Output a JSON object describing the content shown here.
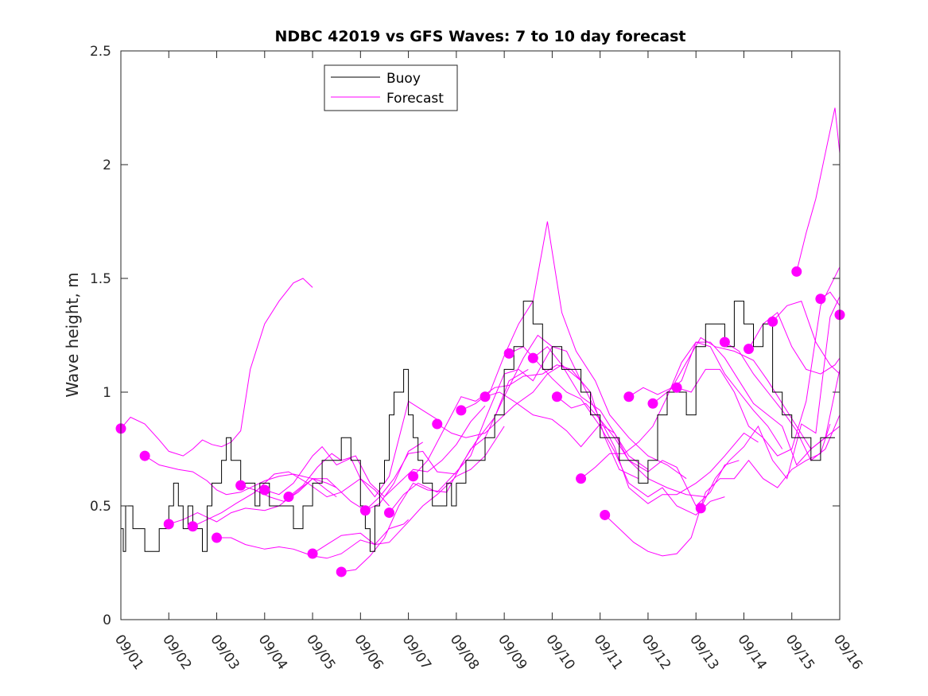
{
  "chart_data": {
    "type": "line",
    "title": "NDBC 42019 vs GFS Waves: 7 to 10 day forecast",
    "xlabel": "",
    "ylabel": "Wave height, m",
    "xlim_days": [
      0,
      15
    ],
    "ylim": [
      0,
      2.5
    ],
    "x_tick_labels": [
      "09/01",
      "09/02",
      "09/03",
      "09/04",
      "09/05",
      "09/06",
      "09/07",
      "09/08",
      "09/09",
      "09/10",
      "09/11",
      "09/12",
      "09/13",
      "09/14",
      "09/15",
      "09/16"
    ],
    "y_ticks": [
      0,
      0.5,
      1,
      1.5,
      2,
      2.5
    ],
    "y_tick_labels": [
      "0",
      "0.5",
      "1",
      "1.5",
      "2",
      "2.5"
    ],
    "grid": false,
    "legend": {
      "placement": "top-left-center",
      "entries": [
        {
          "name": "Buoy",
          "color": "#000000"
        },
        {
          "name": "Forecast",
          "color": "#ff00ff"
        }
      ]
    },
    "colors": {
      "buoy": "#000000",
      "forecast": "#ff00ff",
      "axis": "#262626"
    },
    "x_unit": "days since 09/01",
    "buoy": {
      "name": "Buoy",
      "x": [
        0,
        0.05,
        0.1,
        0.15,
        0.25,
        0.3,
        0.4,
        0.5,
        0.65,
        0.8,
        0.9,
        1.0,
        1.1,
        1.2,
        1.3,
        1.4,
        1.5,
        1.6,
        1.7,
        1.8,
        1.9,
        2.0,
        2.1,
        2.2,
        2.3,
        2.5,
        2.7,
        2.8,
        2.9,
        3.0,
        3.1,
        3.3,
        3.5,
        3.6,
        3.8,
        4.0,
        4.2,
        4.4,
        4.6,
        4.8,
        5.0,
        5.1,
        5.2,
        5.3,
        5.4,
        5.5,
        5.6,
        5.7,
        5.8,
        5.9,
        6.0,
        6.1,
        6.2,
        6.3,
        6.4,
        6.5,
        6.6,
        6.7,
        6.8,
        6.9,
        7.0,
        7.2,
        7.4,
        7.6,
        7.8,
        8.0,
        8.2,
        8.4,
        8.6,
        8.8,
        9.0,
        9.2,
        9.4,
        9.6,
        9.8,
        10.0,
        10.2,
        10.4,
        10.6,
        10.8,
        11.0,
        11.2,
        11.4,
        11.6,
        11.8,
        12.0,
        12.2,
        12.4,
        12.6,
        12.8,
        13.0,
        13.2,
        13.4,
        13.6,
        13.8,
        14.0,
        14.2,
        14.4,
        14.6,
        14.8,
        14.9
      ],
      "y": [
        0.4,
        0.3,
        0.5,
        0.5,
        0.4,
        0.4,
        0.4,
        0.3,
        0.3,
        0.4,
        0.4,
        0.5,
        0.6,
        0.5,
        0.4,
        0.5,
        0.4,
        0.4,
        0.3,
        0.5,
        0.6,
        0.6,
        0.7,
        0.8,
        0.7,
        0.6,
        0.6,
        0.5,
        0.6,
        0.6,
        0.5,
        0.5,
        0.5,
        0.4,
        0.5,
        0.6,
        0.7,
        0.7,
        0.8,
        0.7,
        0.5,
        0.4,
        0.3,
        0.5,
        0.6,
        0.7,
        0.9,
        1.0,
        1.0,
        1.1,
        0.9,
        0.8,
        0.7,
        0.6,
        0.6,
        0.5,
        0.5,
        0.5,
        0.6,
        0.5,
        0.6,
        0.7,
        0.7,
        0.8,
        0.9,
        1.1,
        1.2,
        1.4,
        1.3,
        1.1,
        1.2,
        1.1,
        1.1,
        1.0,
        0.9,
        0.8,
        0.8,
        0.7,
        0.7,
        0.6,
        0.7,
        0.9,
        1.0,
        1.0,
        0.9,
        1.2,
        1.3,
        1.3,
        1.2,
        1.4,
        1.3,
        1.2,
        1.3,
        1.0,
        0.9,
        0.8,
        0.8,
        0.7,
        0.8,
        0.8,
        0.8
      ]
    },
    "forecasts": [
      {
        "x": [
          0,
          0.2,
          0.5,
          0.8,
          1.0,
          1.3,
          1.5,
          1.7,
          1.9,
          2.1,
          2.3,
          2.5,
          2.7,
          3.0,
          3.3,
          3.6,
          3.8,
          4.0
        ],
        "y": [
          0.84,
          0.89,
          0.86,
          0.79,
          0.74,
          0.72,
          0.75,
          0.79,
          0.77,
          0.76,
          0.78,
          0.83,
          1.1,
          1.3,
          1.4,
          1.48,
          1.5,
          1.46
        ]
      },
      {
        "x": [
          0.5,
          0.8,
          1.2,
          1.5,
          1.8,
          2.0,
          2.2,
          2.5,
          2.8,
          3.0,
          3.3,
          3.6,
          4.0,
          4.3,
          4.5
        ],
        "y": [
          0.72,
          0.68,
          0.66,
          0.65,
          0.61,
          0.57,
          0.55,
          0.56,
          0.59,
          0.61,
          0.63,
          0.64,
          0.62,
          0.57,
          0.54
        ]
      },
      {
        "x": [
          1.0,
          1.3,
          1.6,
          2.0,
          2.3,
          2.6,
          3.0,
          3.3,
          3.6,
          4.0,
          4.3,
          4.5
        ],
        "y": [
          0.42,
          0.44,
          0.47,
          0.43,
          0.47,
          0.49,
          0.48,
          0.5,
          0.55,
          0.62,
          0.6,
          0.58
        ]
      },
      {
        "x": [
          1.5,
          1.8,
          2.1,
          2.4,
          2.8,
          3.2,
          3.5,
          3.9,
          4.3,
          4.6,
          5.0,
          5.3,
          5.6
        ],
        "y": [
          0.41,
          0.44,
          0.47,
          0.51,
          0.56,
          0.64,
          0.65,
          0.6,
          0.54,
          0.56,
          0.62,
          0.57,
          0.5
        ]
      },
      {
        "x": [
          2.0,
          2.3,
          2.6,
          3.0,
          3.3,
          3.6,
          4.0,
          4.3,
          4.6,
          5.0,
          5.3,
          5.6,
          5.9,
          6.0
        ],
        "y": [
          0.36,
          0.36,
          0.33,
          0.31,
          0.32,
          0.31,
          0.28,
          0.27,
          0.29,
          0.35,
          0.33,
          0.4,
          0.42,
          0.44
        ]
      },
      {
        "x": [
          2.5,
          2.8,
          3.1,
          3.4,
          3.7,
          4.0,
          4.3,
          4.5,
          4.8,
          5.1,
          5.4,
          5.7,
          6.0,
          6.3
        ],
        "y": [
          0.59,
          0.57,
          0.54,
          0.52,
          0.56,
          0.62,
          0.62,
          0.58,
          0.52,
          0.48,
          0.51,
          0.6,
          0.74,
          0.78
        ]
      },
      {
        "x": [
          3.0,
          3.3,
          3.6,
          4.0,
          4.2,
          4.5,
          4.8,
          5.0,
          5.3,
          5.6,
          6.0,
          6.3,
          6.6
        ],
        "y": [
          0.57,
          0.55,
          0.6,
          0.72,
          0.76,
          0.68,
          0.71,
          0.62,
          0.54,
          0.63,
          0.96,
          0.92,
          0.88
        ]
      },
      {
        "x": [
          3.5,
          3.8,
          4.1,
          4.4,
          4.6,
          4.9,
          5.2,
          5.5,
          5.8,
          6.1,
          6.4,
          6.7,
          7.0,
          7.3,
          7.6
        ],
        "y": [
          0.54,
          0.59,
          0.67,
          0.73,
          0.7,
          0.72,
          0.6,
          0.54,
          0.6,
          0.66,
          0.65,
          0.7,
          0.77,
          0.87,
          0.94
        ]
      },
      {
        "x": [
          4.0,
          4.3,
          4.6,
          5.0,
          5.3,
          5.6,
          6.0,
          6.3,
          6.6,
          7.0,
          7.3,
          7.6,
          8.0
        ],
        "y": [
          0.29,
          0.33,
          0.37,
          0.38,
          0.33,
          0.34,
          0.43,
          0.5,
          0.55,
          0.63,
          0.66,
          0.72,
          0.85
        ]
      },
      {
        "x": [
          4.6,
          4.9,
          5.2,
          5.5,
          5.8,
          6.1,
          6.4,
          6.8,
          7.1,
          7.4,
          7.8,
          8.1,
          8.5
        ],
        "y": [
          0.21,
          0.22,
          0.28,
          0.36,
          0.5,
          0.6,
          0.57,
          0.56,
          0.68,
          0.78,
          0.89,
          1.05,
          1.1
        ]
      },
      {
        "x": [
          5.1,
          5.4,
          5.7,
          6.0,
          6.3,
          6.6,
          7.0,
          7.3,
          7.6,
          8.0,
          8.4,
          8.7,
          9.0
        ],
        "y": [
          0.48,
          0.54,
          0.62,
          0.73,
          0.74,
          0.65,
          0.64,
          0.75,
          0.8,
          0.98,
          1.15,
          1.25,
          1.2
        ]
      },
      {
        "x": [
          5.6,
          5.9,
          6.2,
          6.6,
          7.0,
          7.3,
          7.6,
          8.0,
          8.3,
          8.6,
          9.0,
          9.3,
          9.6
        ],
        "y": [
          0.47,
          0.55,
          0.6,
          0.56,
          0.65,
          0.72,
          0.88,
          1.08,
          1.1,
          1.05,
          1.2,
          1.18,
          1.05
        ]
      },
      {
        "x": [
          6.1,
          6.4,
          6.8,
          7.1,
          7.4,
          7.8,
          8.1,
          8.4,
          8.8,
          9.1,
          9.4,
          9.8,
          10.1,
          10.4,
          10.8
        ],
        "y": [
          0.63,
          0.7,
          0.86,
          0.98,
          0.96,
          1.02,
          1.03,
          1.07,
          1.08,
          1.12,
          1.1,
          1.0,
          0.8,
          0.66,
          0.62
        ]
      },
      {
        "x": [
          6.6,
          6.9,
          7.2,
          7.6,
          7.9,
          8.2,
          8.6,
          8.9,
          9.2,
          9.6,
          10.0,
          10.3,
          10.6,
          11.0
        ],
        "y": [
          0.86,
          0.82,
          0.8,
          0.82,
          0.88,
          0.94,
          1.0,
          1.08,
          1.12,
          0.98,
          0.92,
          0.82,
          0.72,
          0.66
        ]
      },
      {
        "x": [
          7.1,
          7.4,
          7.7,
          8.0,
          8.3,
          8.6,
          8.9,
          9.2,
          9.5,
          9.9,
          10.2,
          10.6,
          11.0,
          11.4,
          11.8
        ],
        "y": [
          0.92,
          0.95,
          1.0,
          1.16,
          1.3,
          1.4,
          1.75,
          1.35,
          1.18,
          1.05,
          0.9,
          0.8,
          0.72,
          0.68,
          0.62
        ]
      },
      {
        "x": [
          7.6,
          7.9,
          8.2,
          8.6,
          9.0,
          9.3,
          9.6,
          10.0,
          10.3,
          10.6,
          11.0,
          11.4,
          11.8,
          12.2
        ],
        "y": [
          0.98,
          1.0,
          0.96,
          0.9,
          0.88,
          0.83,
          0.76,
          0.86,
          0.82,
          0.7,
          0.62,
          0.58,
          0.55,
          0.54
        ]
      },
      {
        "x": [
          8.1,
          8.4,
          8.7,
          9.0,
          9.3,
          9.6,
          10.0,
          10.3,
          10.6,
          11.0,
          11.3,
          11.6,
          12.0,
          12.3,
          12.6
        ],
        "y": [
          1.17,
          1.2,
          1.13,
          1.06,
          1.0,
          0.97,
          0.85,
          0.74,
          0.6,
          0.54,
          0.58,
          0.5,
          0.46,
          0.52,
          0.54
        ]
      },
      {
        "x": [
          8.6,
          8.9,
          9.2,
          9.6,
          10.0,
          10.3,
          10.6,
          11.0,
          11.3,
          11.6,
          12.0,
          12.3,
          12.6,
          13.0,
          13.3
        ],
        "y": [
          1.15,
          1.2,
          1.12,
          1.05,
          0.88,
          0.76,
          0.58,
          0.51,
          0.55,
          0.55,
          0.6,
          0.65,
          0.72,
          0.82,
          0.78
        ]
      },
      {
        "x": [
          9.1,
          9.4,
          9.7,
          10.0,
          10.3,
          10.6,
          11.0,
          11.3,
          11.6,
          12.0,
          12.3,
          12.6,
          12.9
        ],
        "y": [
          0.98,
          0.93,
          0.95,
          0.88,
          0.8,
          0.7,
          0.65,
          0.7,
          0.67,
          0.5,
          0.56,
          0.68,
          0.7
        ]
      },
      {
        "x": [
          9.6,
          9.9,
          10.2,
          10.5,
          10.8,
          11.1,
          11.4,
          11.7,
          12.0,
          12.3,
          12.6,
          12.9,
          13.2,
          13.5,
          13.8
        ],
        "y": [
          0.62,
          0.67,
          0.73,
          0.73,
          0.78,
          0.85,
          0.98,
          1.13,
          1.22,
          1.2,
          1.08,
          1.0,
          0.92,
          0.85,
          0.75
        ]
      },
      {
        "x": [
          10.1,
          10.4,
          10.7,
          11.0,
          11.3,
          11.6,
          11.9,
          12.2,
          12.5,
          12.8,
          13.1,
          13.4,
          13.7,
          14.0,
          14.3,
          14.6,
          14.8
        ],
        "y": [
          0.46,
          0.4,
          0.34,
          0.3,
          0.28,
          0.29,
          0.36,
          0.56,
          0.62,
          0.62,
          0.7,
          0.62,
          0.58,
          0.66,
          0.7,
          0.73,
          0.86
        ]
      },
      {
        "x": [
          10.6,
          10.9,
          11.2,
          11.5,
          11.8,
          12.1,
          12.4,
          12.8,
          13.2,
          13.5,
          13.8,
          14.1,
          14.4,
          14.7,
          15.0
        ],
        "y": [
          0.98,
          1.02,
          0.99,
          1.02,
          1.13,
          1.24,
          1.2,
          1.18,
          1.14,
          1.05,
          0.95,
          0.85,
          0.75,
          0.8,
          0.85
        ]
      },
      {
        "x": [
          11.1,
          11.4,
          11.7,
          12.0,
          12.3,
          12.6,
          12.9,
          13.2,
          13.5,
          13.8,
          14.1,
          14.4,
          14.7,
          15.0
        ],
        "y": [
          0.95,
          1.0,
          1.05,
          1.22,
          1.22,
          1.15,
          1.05,
          0.95,
          0.9,
          0.85,
          0.68,
          0.75,
          0.8,
          1.1
        ]
      },
      {
        "x": [
          11.6,
          11.9,
          12.2,
          12.5,
          12.8,
          13.1,
          13.4,
          13.7,
          14.0,
          14.3,
          14.6,
          15.0
        ],
        "y": [
          1.02,
          1.0,
          1.1,
          1.1,
          1.0,
          0.85,
          0.8,
          0.72,
          0.75,
          0.96,
          1.38,
          1.55
        ]
      },
      {
        "x": [
          12.1,
          12.4,
          12.7,
          13.0,
          13.3,
          13.6,
          13.9,
          14.2,
          14.5,
          14.8,
          15.0
        ],
        "y": [
          0.49,
          0.62,
          0.7,
          0.76,
          0.85,
          0.7,
          0.62,
          0.86,
          0.82,
          1.33,
          1.42
        ]
      },
      {
        "x": [
          12.6,
          12.9,
          13.2,
          13.5,
          13.8,
          14.1,
          14.4,
          14.7,
          15.0
        ],
        "y": [
          1.22,
          1.18,
          1.08,
          1.0,
          0.92,
          0.83,
          0.7,
          0.75,
          0.9
        ]
      },
      {
        "x": [
          13.1,
          13.4,
          13.7,
          14.0,
          14.3,
          14.6,
          14.9,
          15.0
        ],
        "y": [
          1.19,
          1.3,
          1.35,
          1.2,
          1.1,
          1.08,
          1.12,
          1.15
        ]
      },
      {
        "x": [
          13.6,
          13.9,
          14.2,
          14.5,
          14.8,
          15.0
        ],
        "y": [
          1.31,
          1.38,
          1.4,
          1.22,
          1.12,
          1.08
        ]
      },
      {
        "x": [
          14.1,
          14.3,
          14.5,
          14.7,
          14.9,
          15.0
        ],
        "y": [
          1.53,
          1.7,
          1.85,
          2.05,
          2.25,
          2.05
        ]
      },
      {
        "x": [
          14.6,
          14.8,
          15.0
        ],
        "y": [
          1.41,
          1.44,
          1.38
        ]
      },
      {
        "x": [
          15.0
        ],
        "y": [
          1.34
        ]
      }
    ]
  }
}
